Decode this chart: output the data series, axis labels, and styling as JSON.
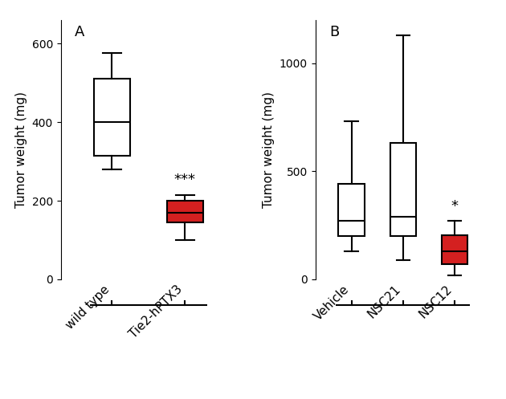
{
  "panel_A": {
    "label": "A",
    "ylabel": "Tumor weight (mg)",
    "ylim": [
      0,
      660
    ],
    "yticks": [
      0,
      200,
      400,
      600
    ],
    "groups": [
      "wild type",
      "Tie2-hPTX3"
    ],
    "colors": [
      "white",
      "#d42020"
    ],
    "boxes": [
      {
        "whislo": 280,
        "q1": 315,
        "med": 400,
        "q3": 510,
        "whishi": 575
      },
      {
        "whislo": 100,
        "q1": 145,
        "med": 170,
        "q3": 200,
        "whishi": 215
      }
    ],
    "significance": [
      "",
      "***"
    ]
  },
  "panel_B": {
    "label": "B",
    "ylabel": "Tumor weight (mg)",
    "ylim": [
      0,
      1200
    ],
    "yticks": [
      0,
      500,
      1000
    ],
    "groups": [
      "Vehicle",
      "NSC21",
      "NSC12"
    ],
    "colors": [
      "white",
      "white",
      "#d42020"
    ],
    "boxes": [
      {
        "whislo": 130,
        "q1": 200,
        "med": 270,
        "q3": 440,
        "whishi": 730
      },
      {
        "whislo": 90,
        "q1": 200,
        "med": 290,
        "q3": 630,
        "whishi": 1130
      },
      {
        "whislo": 20,
        "q1": 70,
        "med": 130,
        "q3": 205,
        "whishi": 270
      }
    ],
    "significance": [
      "",
      "",
      "*"
    ]
  },
  "linewidth": 1.5,
  "box_width": 0.5,
  "fontsize": 11,
  "sig_fontsize": 13,
  "label_fontsize": 13,
  "tick_fontsize": 10,
  "background_color": "#ffffff"
}
